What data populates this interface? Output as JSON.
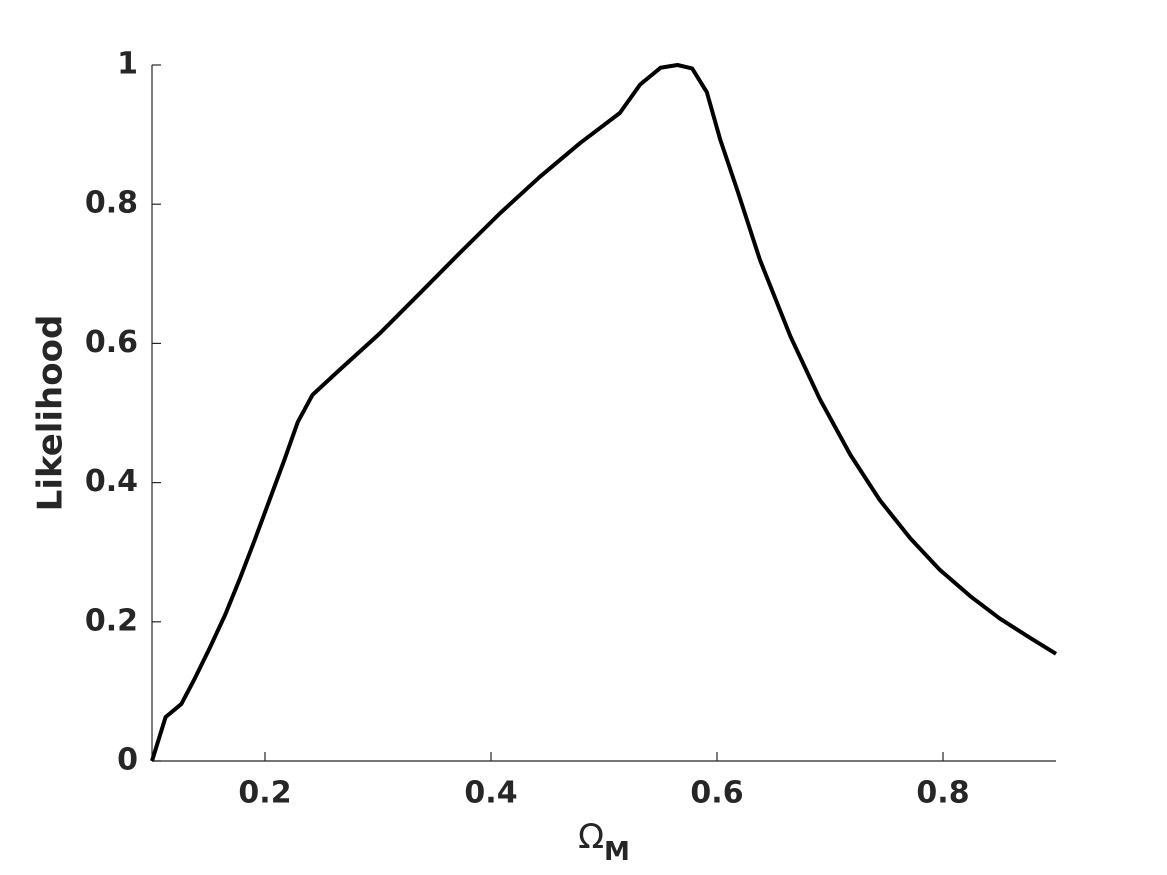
{
  "chart_data": {
    "type": "line",
    "xlabel": "Ω",
    "xlabel_subscript": "M",
    "ylabel": "Likelihood",
    "xlim": [
      0.1,
      0.9
    ],
    "ylim": [
      0,
      1
    ],
    "xticks": [
      0.2,
      0.4,
      0.6,
      0.8
    ],
    "yticks": [
      0,
      0.2,
      0.4,
      0.6,
      0.8,
      1
    ],
    "grid": false,
    "series": [
      {
        "color": "#000000",
        "x": [
          0.1,
          0.112,
          0.126,
          0.138,
          0.151,
          0.165,
          0.178,
          0.191,
          0.204,
          0.217,
          0.229,
          0.242,
          0.266,
          0.302,
          0.337,
          0.373,
          0.408,
          0.443,
          0.479,
          0.514,
          0.532,
          0.55,
          0.565,
          0.578,
          0.591,
          0.603,
          0.618,
          0.638,
          0.665,
          0.691,
          0.718,
          0.744,
          0.771,
          0.797,
          0.824,
          0.85,
          0.877,
          0.9
        ],
        "values": [
          0,
          0.063,
          0.082,
          0.119,
          0.162,
          0.211,
          0.263,
          0.318,
          0.375,
          0.432,
          0.487,
          0.526,
          0.562,
          0.615,
          0.672,
          0.731,
          0.787,
          0.839,
          0.888,
          0.931,
          0.972,
          0.996,
          1,
          0.995,
          0.961,
          0.892,
          0.82,
          0.72,
          0.61,
          0.52,
          0.44,
          0.375,
          0.32,
          0.275,
          0.237,
          0.205,
          0.177,
          0.154
        ]
      }
    ]
  }
}
